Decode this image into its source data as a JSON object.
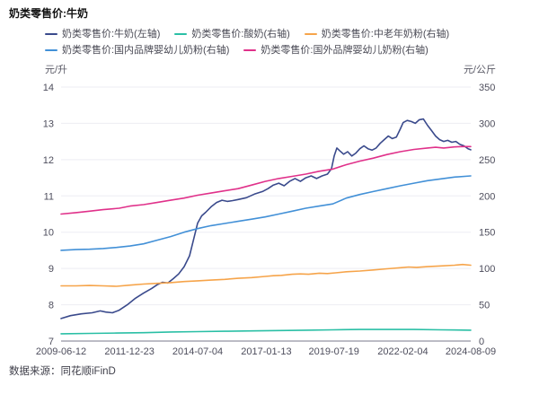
{
  "title": "奶类零售价:牛奶",
  "footer": {
    "source_label": "数据来源：同花顺iFinD"
  },
  "axes": {
    "left_unit": "元/升",
    "right_unit": "元/公斤"
  },
  "colors": {
    "milk": "#3a4a8c",
    "yogurt": "#2abfa5",
    "middle_aged_powder": "#f6a44a",
    "domestic_infant_formula": "#4290d7",
    "foreign_infant_formula": "#e0318a",
    "gridline": "#ededf3",
    "axis_baseline": "#a6a6b2",
    "tick_text": "#4d4d5c"
  },
  "chart_data": {
    "type": "line",
    "title": "奶类零售价:牛奶",
    "grid": true,
    "legend_position": "top",
    "x_axis": {
      "range": [
        2009.45,
        2024.6
      ],
      "tick_labels": [
        "2009-06-12",
        "2011-12-23",
        "2014-07-04",
        "2017-01-13",
        "2019-07-19",
        "2022-02-04",
        "2024-08-09"
      ],
      "tick_t": [
        2009.45,
        2011.98,
        2014.5,
        2017.04,
        2019.54,
        2022.09,
        2024.6
      ]
    },
    "left_axis": {
      "unit": "元/升",
      "range": [
        7,
        14
      ],
      "ticks": [
        14,
        13,
        12,
        11,
        10,
        9,
        8,
        7
      ]
    },
    "right_axis": {
      "unit": "元/公斤",
      "range": [
        0,
        350
      ],
      "ticks": [
        350,
        300,
        250,
        200,
        150,
        100,
        50,
        0
      ]
    },
    "series": [
      {
        "id": "milk",
        "name": "奶类零售价:牛奶(左轴)",
        "axis": "left",
        "color": "#3a4a8c",
        "points": [
          [
            2009.45,
            7.62
          ],
          [
            2009.8,
            7.7
          ],
          [
            2010.2,
            7.75
          ],
          [
            2010.6,
            7.78
          ],
          [
            2010.9,
            7.83
          ],
          [
            2011.1,
            7.8
          ],
          [
            2011.35,
            7.78
          ],
          [
            2011.6,
            7.85
          ],
          [
            2011.9,
            8.0
          ],
          [
            2012.2,
            8.18
          ],
          [
            2012.5,
            8.32
          ],
          [
            2012.8,
            8.45
          ],
          [
            2013.0,
            8.55
          ],
          [
            2013.2,
            8.62
          ],
          [
            2013.4,
            8.6
          ],
          [
            2013.6,
            8.72
          ],
          [
            2013.8,
            8.85
          ],
          [
            2014.0,
            9.05
          ],
          [
            2014.2,
            9.35
          ],
          [
            2014.35,
            9.8
          ],
          [
            2014.5,
            10.25
          ],
          [
            2014.65,
            10.45
          ],
          [
            2014.8,
            10.55
          ],
          [
            2015.0,
            10.7
          ],
          [
            2015.2,
            10.82
          ],
          [
            2015.4,
            10.88
          ],
          [
            2015.6,
            10.85
          ],
          [
            2015.8,
            10.87
          ],
          [
            2016.0,
            10.9
          ],
          [
            2016.3,
            10.95
          ],
          [
            2016.6,
            11.05
          ],
          [
            2016.9,
            11.12
          ],
          [
            2017.1,
            11.2
          ],
          [
            2017.3,
            11.3
          ],
          [
            2017.5,
            11.35
          ],
          [
            2017.7,
            11.28
          ],
          [
            2017.9,
            11.4
          ],
          [
            2018.1,
            11.48
          ],
          [
            2018.3,
            11.4
          ],
          [
            2018.5,
            11.5
          ],
          [
            2018.7,
            11.55
          ],
          [
            2018.9,
            11.48
          ],
          [
            2019.1,
            11.55
          ],
          [
            2019.3,
            11.6
          ],
          [
            2019.45,
            11.75
          ],
          [
            2019.55,
            12.1
          ],
          [
            2019.65,
            12.32
          ],
          [
            2019.75,
            12.25
          ],
          [
            2019.9,
            12.15
          ],
          [
            2020.05,
            12.22
          ],
          [
            2020.2,
            12.1
          ],
          [
            2020.35,
            12.18
          ],
          [
            2020.5,
            12.3
          ],
          [
            2020.65,
            12.38
          ],
          [
            2020.8,
            12.3
          ],
          [
            2020.95,
            12.26
          ],
          [
            2021.1,
            12.32
          ],
          [
            2021.25,
            12.45
          ],
          [
            2021.4,
            12.55
          ],
          [
            2021.55,
            12.65
          ],
          [
            2021.7,
            12.58
          ],
          [
            2021.85,
            12.62
          ],
          [
            2022.0,
            12.85
          ],
          [
            2022.1,
            13.02
          ],
          [
            2022.25,
            13.08
          ],
          [
            2022.4,
            13.05
          ],
          [
            2022.55,
            13.0
          ],
          [
            2022.7,
            13.1
          ],
          [
            2022.85,
            13.12
          ],
          [
            2023.0,
            12.95
          ],
          [
            2023.15,
            12.8
          ],
          [
            2023.3,
            12.65
          ],
          [
            2023.45,
            12.55
          ],
          [
            2023.6,
            12.5
          ],
          [
            2023.75,
            12.53
          ],
          [
            2023.9,
            12.48
          ],
          [
            2024.05,
            12.5
          ],
          [
            2024.2,
            12.42
          ],
          [
            2024.35,
            12.38
          ],
          [
            2024.5,
            12.3
          ],
          [
            2024.6,
            12.27
          ]
        ]
      },
      {
        "id": "yogurt",
        "name": "奶类零售价:酸奶(右轴)",
        "axis": "right",
        "color": "#2abfa5",
        "points": [
          [
            2009.45,
            10
          ],
          [
            2010.5,
            10.5
          ],
          [
            2011.5,
            11
          ],
          [
            2012.5,
            11.5
          ],
          [
            2013.5,
            12.5
          ],
          [
            2014.5,
            13
          ],
          [
            2015.5,
            13.5
          ],
          [
            2016.5,
            14
          ],
          [
            2017.5,
            14.5
          ],
          [
            2018.5,
            15
          ],
          [
            2019.5,
            15.5
          ],
          [
            2020.5,
            16
          ],
          [
            2021.5,
            16
          ],
          [
            2022.5,
            16
          ],
          [
            2023.5,
            15.5
          ],
          [
            2024.6,
            15
          ]
        ]
      },
      {
        "id": "middle-aged-milk-powder",
        "name": "奶类零售价:中老年奶粉(右轴)",
        "axis": "right",
        "color": "#f6a44a",
        "points": [
          [
            2009.45,
            76
          ],
          [
            2010.0,
            76
          ],
          [
            2010.5,
            76.5
          ],
          [
            2011.0,
            76
          ],
          [
            2011.5,
            75.5
          ],
          [
            2012.0,
            77
          ],
          [
            2012.5,
            78.5
          ],
          [
            2013.0,
            79.5
          ],
          [
            2013.5,
            80.5
          ],
          [
            2014.0,
            82
          ],
          [
            2014.5,
            83
          ],
          [
            2015.0,
            84
          ],
          [
            2015.5,
            85
          ],
          [
            2016.0,
            86.5
          ],
          [
            2016.5,
            87.5
          ],
          [
            2017.0,
            89
          ],
          [
            2017.3,
            90
          ],
          [
            2017.6,
            90.5
          ],
          [
            2018.0,
            92
          ],
          [
            2018.3,
            92.5
          ],
          [
            2018.6,
            92
          ],
          [
            2019.0,
            93.5
          ],
          [
            2019.3,
            93
          ],
          [
            2019.6,
            94
          ],
          [
            2020.0,
            95.5
          ],
          [
            2020.5,
            96.5
          ],
          [
            2021.0,
            98
          ],
          [
            2021.5,
            99.5
          ],
          [
            2022.0,
            101
          ],
          [
            2022.3,
            102
          ],
          [
            2022.6,
            101.5
          ],
          [
            2023.0,
            102.5
          ],
          [
            2023.5,
            103.5
          ],
          [
            2024.0,
            104.5
          ],
          [
            2024.3,
            105.5
          ],
          [
            2024.6,
            104.5
          ]
        ]
      },
      {
        "id": "domestic-infant-formula",
        "name": "奶类零售价:国内品牌婴幼儿奶粉(右轴)",
        "axis": "right",
        "color": "#4290d7",
        "points": [
          [
            2009.45,
            125
          ],
          [
            2010.0,
            126
          ],
          [
            2010.5,
            126.5
          ],
          [
            2011.0,
            127.5
          ],
          [
            2011.5,
            129
          ],
          [
            2012.0,
            131
          ],
          [
            2012.5,
            134
          ],
          [
            2013.0,
            139
          ],
          [
            2013.5,
            144
          ],
          [
            2014.0,
            150
          ],
          [
            2014.5,
            155
          ],
          [
            2015.0,
            159
          ],
          [
            2015.5,
            162
          ],
          [
            2016.0,
            165
          ],
          [
            2016.5,
            168
          ],
          [
            2017.0,
            171
          ],
          [
            2017.5,
            175
          ],
          [
            2018.0,
            179
          ],
          [
            2018.5,
            183
          ],
          [
            2019.0,
            186
          ],
          [
            2019.5,
            189
          ],
          [
            2020.0,
            197
          ],
          [
            2020.5,
            202
          ],
          [
            2021.0,
            206
          ],
          [
            2021.5,
            210
          ],
          [
            2022.0,
            214
          ],
          [
            2022.5,
            217.5
          ],
          [
            2023.0,
            221
          ],
          [
            2023.5,
            223.5
          ],
          [
            2024.0,
            226
          ],
          [
            2024.6,
            227.5
          ]
        ]
      },
      {
        "id": "foreign-infant-formula",
        "name": "奶类零售价:国外品牌婴幼儿奶粉(右轴)",
        "axis": "right",
        "color": "#e0318a",
        "points": [
          [
            2009.45,
            175
          ],
          [
            2010.0,
            177
          ],
          [
            2010.5,
            179
          ],
          [
            2011.0,
            181
          ],
          [
            2011.3,
            182
          ],
          [
            2011.6,
            183
          ],
          [
            2012.0,
            186
          ],
          [
            2012.5,
            188
          ],
          [
            2013.0,
            191
          ],
          [
            2013.5,
            194
          ],
          [
            2014.0,
            197
          ],
          [
            2014.5,
            201
          ],
          [
            2015.0,
            204
          ],
          [
            2015.5,
            207
          ],
          [
            2016.0,
            210
          ],
          [
            2016.5,
            215
          ],
          [
            2017.0,
            220
          ],
          [
            2017.5,
            224
          ],
          [
            2018.0,
            227
          ],
          [
            2018.5,
            230
          ],
          [
            2019.0,
            234
          ],
          [
            2019.5,
            237
          ],
          [
            2020.0,
            243
          ],
          [
            2020.5,
            248
          ],
          [
            2021.0,
            252
          ],
          [
            2021.5,
            257
          ],
          [
            2022.0,
            261
          ],
          [
            2022.5,
            264
          ],
          [
            2023.0,
            266
          ],
          [
            2023.3,
            267
          ],
          [
            2023.6,
            266
          ],
          [
            2024.0,
            267.5
          ],
          [
            2024.3,
            268
          ],
          [
            2024.6,
            268
          ]
        ]
      }
    ]
  }
}
